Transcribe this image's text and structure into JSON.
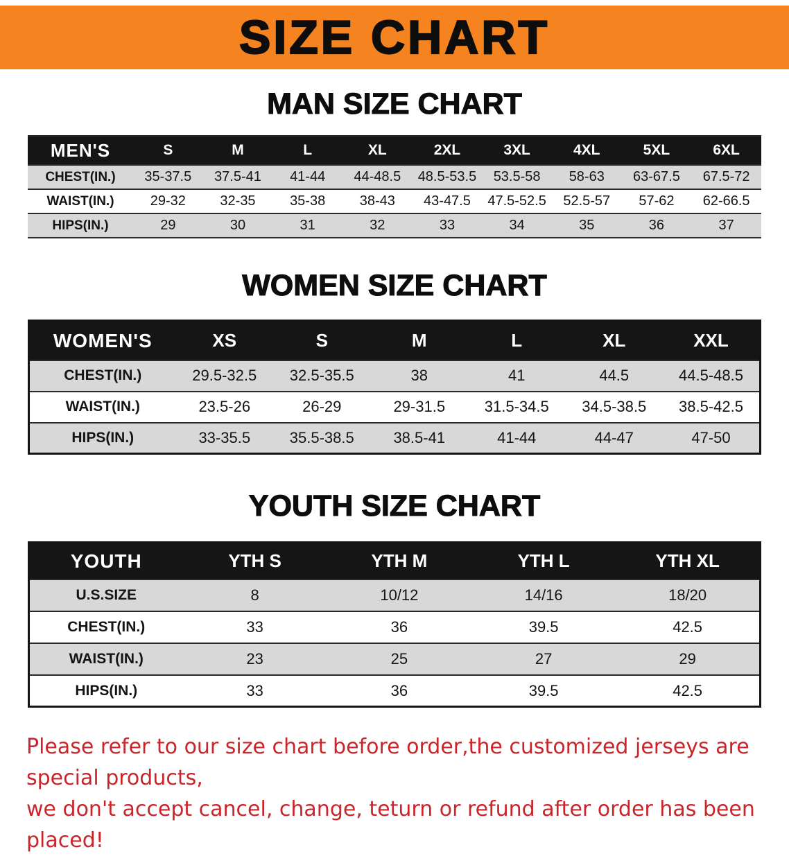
{
  "banner": {
    "title": "SIZE CHART"
  },
  "men": {
    "heading": "MAN SIZE CHART",
    "header": [
      "MEN'S",
      "S",
      "M",
      "L",
      "XL",
      "2XL",
      "3XL",
      "4XL",
      "5XL",
      "6XL"
    ],
    "rows": [
      {
        "label": "CHEST(IN.)",
        "values": [
          "35-37.5",
          "37.5-41",
          "41-44",
          "44-48.5",
          "48.5-53.5",
          "53.5-58",
          "58-63",
          "63-67.5",
          "67.5-72"
        ]
      },
      {
        "label": "WAIST(IN.)",
        "values": [
          "29-32",
          "32-35",
          "35-38",
          "38-43",
          "43-47.5",
          "47.5-52.5",
          "52.5-57",
          "57-62",
          "62-66.5"
        ]
      },
      {
        "label": "HIPS(IN.)",
        "values": [
          "29",
          "30",
          "31",
          "32",
          "33",
          "34",
          "35",
          "36",
          "37"
        ]
      }
    ]
  },
  "women": {
    "heading": "WOMEN SIZE CHART",
    "header": [
      "WOMEN'S",
      "XS",
      "S",
      "M",
      "L",
      "XL",
      "XXL"
    ],
    "rows": [
      {
        "label": "CHEST(IN.)",
        "values": [
          "29.5-32.5",
          "32.5-35.5",
          "38",
          "41",
          "44.5",
          "44.5-48.5"
        ]
      },
      {
        "label": "WAIST(IN.)",
        "values": [
          "23.5-26",
          "26-29",
          "29-31.5",
          "31.5-34.5",
          "34.5-38.5",
          "38.5-42.5"
        ]
      },
      {
        "label": "HIPS(IN.)",
        "values": [
          "33-35.5",
          "35.5-38.5",
          "38.5-41",
          "41-44",
          "44-47",
          "47-50"
        ]
      }
    ]
  },
  "youth": {
    "heading": "YOUTH SIZE CHART",
    "header": [
      "YOUTH",
      "YTH S",
      "YTH M",
      "YTH L",
      "YTH XL"
    ],
    "rows": [
      {
        "label": "U.S.SIZE",
        "values": [
          "8",
          "10/12",
          "14/16",
          "18/20"
        ]
      },
      {
        "label": "CHEST(IN.)",
        "values": [
          "33",
          "36",
          "39.5",
          "42.5"
        ]
      },
      {
        "label": "WAIST(IN.)",
        "values": [
          "23",
          "25",
          "27",
          "29"
        ]
      },
      {
        "label": "HIPS(IN.)",
        "values": [
          "33",
          "36",
          "39.5",
          "42.5"
        ]
      }
    ]
  },
  "footer": {
    "line1": "Please refer to our size chart before order,the customized jerseys are special products,",
    "line2": "we don't accept cancel, change, teturn or refund after order has been placed!"
  },
  "colors": {
    "banner_bg": "#F5831F",
    "table_header_bg": "#151515",
    "row_stripe": "#D8D8D8",
    "note_red": "#C9252B"
  }
}
